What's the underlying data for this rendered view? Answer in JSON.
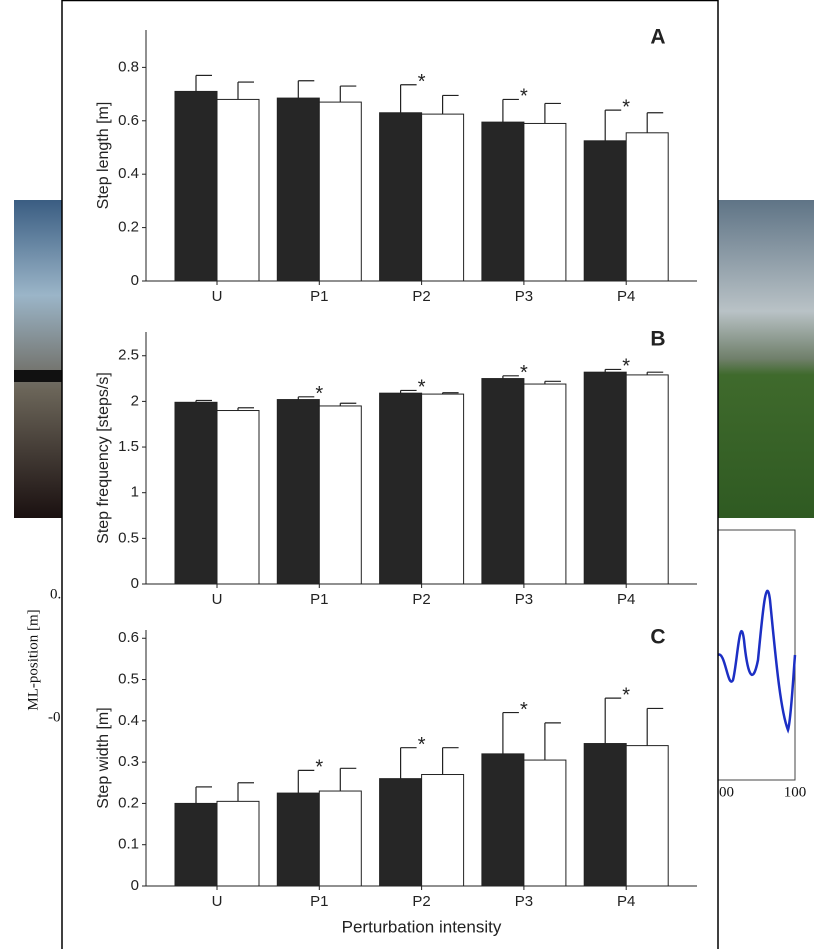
{
  "background": {
    "y_label": "ML-position [m]",
    "y_tick_labels": [
      "0.",
      "-0."
    ],
    "x_tick_labels": [
      "00",
      "100"
    ]
  },
  "chart_data": [
    {
      "type": "bar",
      "label": "A",
      "y_label": "Step length [m]",
      "categories": [
        "U",
        "P1",
        "P2",
        "P3",
        "P4"
      ],
      "series": [
        {
          "color": "#262626",
          "values": [
            0.71,
            0.685,
            0.63,
            0.595,
            0.525
          ],
          "errors": [
            0.06,
            0.065,
            0.105,
            0.085,
            0.115
          ]
        },
        {
          "color": "#ffffff",
          "values": [
            0.68,
            0.67,
            0.625,
            0.59,
            0.555
          ],
          "errors": [
            0.065,
            0.06,
            0.07,
            0.075,
            0.075
          ]
        }
      ],
      "annotations": [
        {
          "text": "*",
          "category": "P2"
        },
        {
          "text": "*",
          "category": "P3"
        },
        {
          "text": "*",
          "category": "P4"
        }
      ],
      "ylim": [
        0,
        0.94
      ],
      "yticks": [
        0,
        0.2,
        0.4,
        0.6,
        0.8
      ]
    },
    {
      "type": "bar",
      "label": "B",
      "y_label": "Step frequency [steps/s]",
      "categories": [
        "U",
        "P1",
        "P2",
        "P3",
        "P4"
      ],
      "series": [
        {
          "color": "#262626",
          "values": [
            1.99,
            2.02,
            2.09,
            2.25,
            2.32
          ],
          "errors": [
            0.02,
            0.03,
            0.03,
            0.03,
            0.03
          ]
        },
        {
          "color": "#ffffff",
          "values": [
            1.9,
            1.95,
            2.08,
            2.19,
            2.29
          ],
          "errors": [
            0.03,
            0.03,
            0.015,
            0.03,
            0.03
          ]
        }
      ],
      "annotations": [
        {
          "text": "*",
          "category": "P1"
        },
        {
          "text": "*",
          "category": "P2"
        },
        {
          "text": "*",
          "category": "P3"
        },
        {
          "text": "*",
          "category": "P4"
        }
      ],
      "ylim": [
        0,
        2.76
      ],
      "yticks": [
        0,
        0.5,
        1,
        1.5,
        2,
        2.5
      ]
    },
    {
      "type": "bar",
      "label": "C",
      "y_label": "Step width [m]",
      "x_label": "Perturbation intensity",
      "categories": [
        "U",
        "P1",
        "P2",
        "P3",
        "P4"
      ],
      "series": [
        {
          "color": "#262626",
          "values": [
            0.2,
            0.225,
            0.26,
            0.32,
            0.345
          ],
          "errors": [
            0.04,
            0.055,
            0.075,
            0.1,
            0.11
          ]
        },
        {
          "color": "#ffffff",
          "values": [
            0.205,
            0.23,
            0.27,
            0.305,
            0.34
          ],
          "errors": [
            0.045,
            0.055,
            0.065,
            0.09,
            0.09
          ]
        }
      ],
      "annotations": [
        {
          "text": "*",
          "category": "P1"
        },
        {
          "text": "*",
          "category": "P2"
        },
        {
          "text": "*",
          "category": "P3"
        },
        {
          "text": "*",
          "category": "P4"
        }
      ],
      "ylim": [
        0,
        0.62
      ],
      "yticks": [
        0,
        0.1,
        0.2,
        0.3,
        0.4,
        0.5,
        0.6
      ]
    }
  ]
}
